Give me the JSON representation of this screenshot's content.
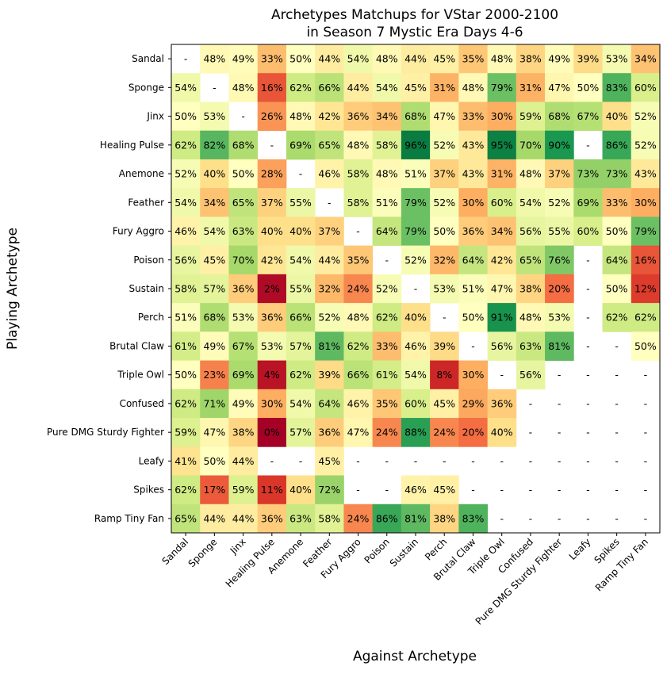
{
  "chart_data": {
    "type": "heatmap",
    "title_line1": "Archetypes Matchups for VStar 2000-2100",
    "title_line2": "in Season 7 Mystic Era Days 4-6",
    "xlabel": "Against Archetype",
    "ylabel": "Playing Archetype",
    "categories": [
      "Sandal",
      "Sponge",
      "Jinx",
      "Healing Pulse",
      "Anemone",
      "Feather",
      "Fury Aggro",
      "Poison",
      "Sustain",
      "Perch",
      "Brutal Claw",
      "Triple Owl",
      "Confused",
      "Pure DMG Sturdy Fighter",
      "Leafy",
      "Spikes",
      "Ramp Tiny Fan"
    ],
    "missing_label": "-",
    "value_suffix": "%",
    "colormap": "RdYlGn",
    "value_range": [
      0,
      100
    ],
    "values": [
      [
        null,
        48,
        49,
        33,
        50,
        44,
        54,
        48,
        44,
        45,
        35,
        48,
        38,
        49,
        39,
        53,
        34
      ],
      [
        54,
        null,
        48,
        16,
        62,
        66,
        44,
        54,
        45,
        31,
        48,
        79,
        31,
        47,
        50,
        83,
        60
      ],
      [
        50,
        53,
        null,
        26,
        48,
        42,
        36,
        34,
        68,
        47,
        33,
        30,
        59,
        68,
        67,
        40,
        52
      ],
      [
        62,
        82,
        68,
        null,
        69,
        65,
        48,
        58,
        96,
        52,
        43,
        95,
        70,
        90,
        null,
        86,
        52
      ],
      [
        52,
        40,
        50,
        28,
        null,
        46,
        58,
        48,
        51,
        37,
        43,
        31,
        48,
        37,
        73,
        73,
        43
      ],
      [
        54,
        34,
        65,
        37,
        55,
        null,
        58,
        51,
        79,
        52,
        30,
        60,
        54,
        52,
        69,
        33,
        30
      ],
      [
        46,
        54,
        63,
        40,
        40,
        37,
        null,
        64,
        79,
        50,
        36,
        34,
        56,
        55,
        60,
        50,
        79
      ],
      [
        56,
        45,
        70,
        42,
        54,
        44,
        35,
        null,
        52,
        32,
        64,
        42,
        65,
        76,
        null,
        64,
        16
      ],
      [
        58,
        57,
        36,
        2,
        55,
        32,
        24,
        52,
        null,
        53,
        51,
        47,
        38,
        20,
        null,
        50,
        12
      ],
      [
        51,
        68,
        53,
        36,
        66,
        52,
        48,
        62,
        40,
        null,
        50,
        91,
        48,
        53,
        null,
        62,
        62
      ],
      [
        61,
        49,
        67,
        53,
        57,
        81,
        62,
        33,
        46,
        39,
        null,
        56,
        63,
        81,
        null,
        null,
        50
      ],
      [
        50,
        23,
        69,
        4,
        62,
        39,
        66,
        61,
        54,
        8,
        30,
        null,
        56,
        null,
        null,
        null,
        null
      ],
      [
        62,
        71,
        49,
        30,
        54,
        64,
        46,
        35,
        60,
        45,
        29,
        36,
        null,
        null,
        null,
        null,
        null
      ],
      [
        59,
        47,
        38,
        0,
        57,
        36,
        47,
        24,
        88,
        24,
        20,
        40,
        null,
        null,
        null,
        null,
        null
      ],
      [
        41,
        50,
        44,
        null,
        null,
        45,
        null,
        null,
        null,
        null,
        null,
        null,
        null,
        null,
        null,
        null,
        null
      ],
      [
        62,
        17,
        59,
        11,
        40,
        72,
        null,
        null,
        46,
        45,
        null,
        null,
        null,
        null,
        null,
        null,
        null
      ],
      [
        65,
        44,
        44,
        36,
        63,
        58,
        24,
        86,
        81,
        38,
        83,
        null,
        null,
        null,
        null,
        null,
        null
      ]
    ]
  }
}
